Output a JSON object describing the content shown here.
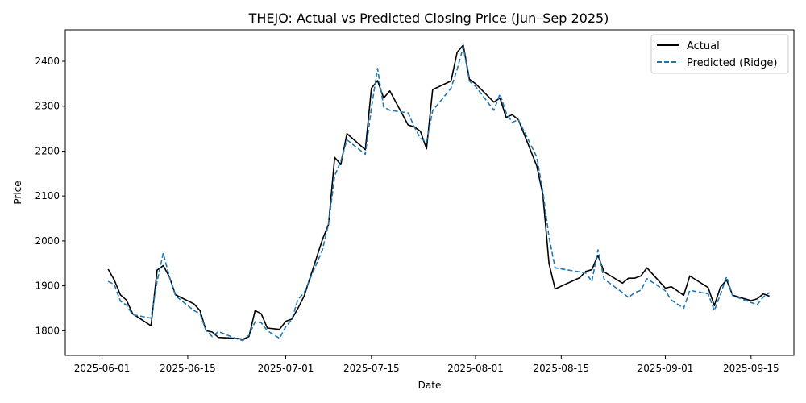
{
  "chart_data": {
    "type": "line",
    "title": "THEJO: Actual vs Predicted Closing Price (Jun–Sep 2025)",
    "xlabel": "Date",
    "ylabel": "Price",
    "xlim": [
      "2025-05-26",
      "2025-09-22"
    ],
    "ylim": [
      1745,
      2470
    ],
    "x_ticks": [
      "2025-06-01",
      "2025-06-15",
      "2025-07-01",
      "2025-07-15",
      "2025-08-01",
      "2025-08-15",
      "2025-09-01",
      "2025-09-15"
    ],
    "y_ticks": [
      1800,
      1900,
      2000,
      2100,
      2200,
      2300,
      2400
    ],
    "grid": false,
    "legend_position": "top-right",
    "series": [
      {
        "name": "Actual",
        "color": "#000000",
        "style": "solid",
        "points": [
          [
            "2025-06-02",
            1937
          ],
          [
            "2025-06-03",
            1913
          ],
          [
            "2025-06-04",
            1880
          ],
          [
            "2025-06-05",
            1868
          ],
          [
            "2025-06-06",
            1838
          ],
          [
            "2025-06-09",
            1811
          ],
          [
            "2025-06-10",
            1935
          ],
          [
            "2025-06-11",
            1945
          ],
          [
            "2025-06-12",
            1920
          ],
          [
            "2025-06-13",
            1880
          ],
          [
            "2025-06-16",
            1860
          ],
          [
            "2025-06-17",
            1845
          ],
          [
            "2025-06-18",
            1800
          ],
          [
            "2025-06-19",
            1797
          ],
          [
            "2025-06-20",
            1785
          ],
          [
            "2025-06-23",
            1783
          ],
          [
            "2025-06-24",
            1781
          ],
          [
            "2025-06-25",
            1787
          ],
          [
            "2025-06-26",
            1845
          ],
          [
            "2025-06-27",
            1838
          ],
          [
            "2025-06-28",
            1806
          ],
          [
            "2025-06-30",
            1803
          ],
          [
            "2025-07-01",
            1821
          ],
          [
            "2025-07-02",
            1826
          ],
          [
            "2025-07-03",
            1850
          ],
          [
            "2025-07-04",
            1877
          ],
          [
            "2025-07-07",
            2003
          ],
          [
            "2025-07-08",
            2037
          ],
          [
            "2025-07-09",
            2186
          ],
          [
            "2025-07-10",
            2170
          ],
          [
            "2025-07-11",
            2239
          ],
          [
            "2025-07-14",
            2203
          ],
          [
            "2025-07-15",
            2340
          ],
          [
            "2025-07-16",
            2357
          ],
          [
            "2025-07-17",
            2318
          ],
          [
            "2025-07-18",
            2334
          ],
          [
            "2025-07-21",
            2258
          ],
          [
            "2025-07-22",
            2254
          ],
          [
            "2025-07-23",
            2244
          ],
          [
            "2025-07-24",
            2205
          ],
          [
            "2025-07-25",
            2337
          ],
          [
            "2025-07-28",
            2356
          ],
          [
            "2025-07-29",
            2420
          ],
          [
            "2025-07-30",
            2436
          ],
          [
            "2025-07-31",
            2360
          ],
          [
            "2025-08-01",
            2350
          ],
          [
            "2025-08-04",
            2309
          ],
          [
            "2025-08-05",
            2318
          ],
          [
            "2025-08-06",
            2275
          ],
          [
            "2025-08-07",
            2281
          ],
          [
            "2025-08-08",
            2270
          ],
          [
            "2025-08-11",
            2167
          ],
          [
            "2025-08-12",
            2103
          ],
          [
            "2025-08-13",
            1950
          ],
          [
            "2025-08-14",
            1893
          ],
          [
            "2025-08-18",
            1918
          ],
          [
            "2025-08-19",
            1932
          ],
          [
            "2025-08-20",
            1936
          ],
          [
            "2025-08-21",
            1968
          ],
          [
            "2025-08-22",
            1931
          ],
          [
            "2025-08-25",
            1906
          ],
          [
            "2025-08-26",
            1917
          ],
          [
            "2025-08-27",
            1917
          ],
          [
            "2025-08-28",
            1922
          ],
          [
            "2025-08-29",
            1940
          ],
          [
            "2025-09-01",
            1895
          ],
          [
            "2025-09-02",
            1898
          ],
          [
            "2025-09-04",
            1879
          ],
          [
            "2025-09-05",
            1922
          ],
          [
            "2025-09-08",
            1896
          ],
          [
            "2025-09-09",
            1856
          ],
          [
            "2025-09-10",
            1897
          ],
          [
            "2025-09-11",
            1913
          ],
          [
            "2025-09-12",
            1879
          ],
          [
            "2025-09-15",
            1867
          ],
          [
            "2025-09-16",
            1871
          ],
          [
            "2025-09-17",
            1882
          ],
          [
            "2025-09-18",
            1877
          ]
        ]
      },
      {
        "name": "Predicted (Ridge)",
        "color": "#1f77b4",
        "style": "dashed",
        "points": [
          [
            "2025-06-02",
            1910
          ],
          [
            "2025-06-03",
            1903
          ],
          [
            "2025-06-04",
            1866
          ],
          [
            "2025-06-05",
            1857
          ],
          [
            "2025-06-06",
            1836
          ],
          [
            "2025-06-09",
            1828
          ],
          [
            "2025-06-10",
            1910
          ],
          [
            "2025-06-11",
            1973
          ],
          [
            "2025-06-12",
            1920
          ],
          [
            "2025-06-13",
            1878
          ],
          [
            "2025-06-16",
            1845
          ],
          [
            "2025-06-17",
            1838
          ],
          [
            "2025-06-18",
            1800
          ],
          [
            "2025-06-19",
            1787
          ],
          [
            "2025-06-20",
            1798
          ],
          [
            "2025-06-23",
            1782
          ],
          [
            "2025-06-24",
            1778
          ],
          [
            "2025-06-25",
            1790
          ],
          [
            "2025-06-26",
            1820
          ],
          [
            "2025-06-27",
            1818
          ],
          [
            "2025-06-28",
            1800
          ],
          [
            "2025-06-30",
            1783
          ],
          [
            "2025-07-01",
            1809
          ],
          [
            "2025-07-02",
            1825
          ],
          [
            "2025-07-03",
            1870
          ],
          [
            "2025-07-04",
            1884
          ],
          [
            "2025-07-07",
            1980
          ],
          [
            "2025-07-08",
            2038
          ],
          [
            "2025-07-09",
            2145
          ],
          [
            "2025-07-10",
            2178
          ],
          [
            "2025-07-11",
            2225
          ],
          [
            "2025-07-14",
            2193
          ],
          [
            "2025-07-15",
            2296
          ],
          [
            "2025-07-16",
            2384
          ],
          [
            "2025-07-17",
            2298
          ],
          [
            "2025-07-18",
            2291
          ],
          [
            "2025-07-21",
            2285
          ],
          [
            "2025-07-22",
            2254
          ],
          [
            "2025-07-23",
            2228
          ],
          [
            "2025-07-24",
            2220
          ],
          [
            "2025-07-25",
            2290
          ],
          [
            "2025-07-28",
            2340
          ],
          [
            "2025-07-29",
            2382
          ],
          [
            "2025-07-30",
            2432
          ],
          [
            "2025-07-31",
            2356
          ],
          [
            "2025-08-01",
            2344
          ],
          [
            "2025-08-04",
            2291
          ],
          [
            "2025-08-05",
            2327
          ],
          [
            "2025-08-06",
            2285
          ],
          [
            "2025-08-07",
            2264
          ],
          [
            "2025-08-08",
            2270
          ],
          [
            "2025-08-11",
            2187
          ],
          [
            "2025-08-12",
            2110
          ],
          [
            "2025-08-13",
            2009
          ],
          [
            "2025-08-14",
            1940
          ],
          [
            "2025-08-18",
            1931
          ],
          [
            "2025-08-19",
            1929
          ],
          [
            "2025-08-20",
            1910
          ],
          [
            "2025-08-21",
            1980
          ],
          [
            "2025-08-22",
            1915
          ],
          [
            "2025-08-25",
            1885
          ],
          [
            "2025-08-26",
            1874
          ],
          [
            "2025-08-27",
            1885
          ],
          [
            "2025-08-28",
            1890
          ],
          [
            "2025-08-29",
            1916
          ],
          [
            "2025-09-01",
            1889
          ],
          [
            "2025-09-02",
            1868
          ],
          [
            "2025-09-04",
            1850
          ],
          [
            "2025-09-05",
            1890
          ],
          [
            "2025-09-08",
            1882
          ],
          [
            "2025-09-09",
            1845
          ],
          [
            "2025-09-10",
            1881
          ],
          [
            "2025-09-11",
            1920
          ],
          [
            "2025-09-12",
            1878
          ],
          [
            "2025-09-15",
            1863
          ],
          [
            "2025-09-16",
            1858
          ],
          [
            "2025-09-17",
            1875
          ],
          [
            "2025-09-18",
            1885
          ]
        ]
      }
    ]
  }
}
